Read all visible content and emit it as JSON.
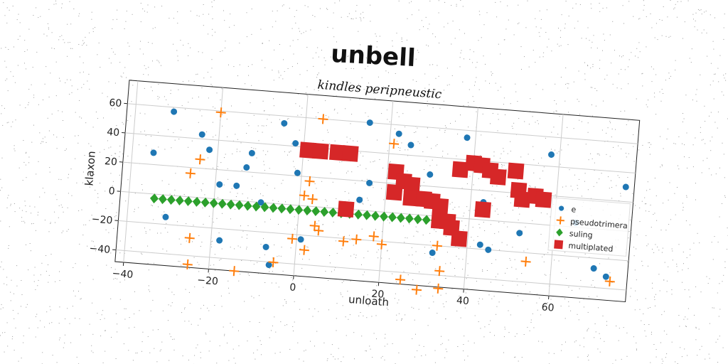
{
  "chart_data": {
    "type": "scatter",
    "suptitle": "unbell",
    "title": "kindles peripneustic",
    "xlabel": "unloath",
    "ylabel": "klaxon",
    "xlim": [
      -42,
      78
    ],
    "ylim": [
      -48,
      76
    ],
    "xticks": [
      -40,
      -20,
      0,
      20,
      40,
      60
    ],
    "yticks": [
      -40,
      -20,
      0,
      20,
      40,
      60
    ],
    "grid": true,
    "legend_position": "center-right",
    "colors": {
      "e": "#1f77b4",
      "pseudotrimera": "#ff7f0e",
      "suling": "#2ca02c",
      "multiplated": "#d62728",
      "grid": "#cccccc"
    },
    "series": [
      {
        "name": "e",
        "marker": "circle",
        "points": [
          [
            -35,
            28
          ],
          [
            -31,
            57
          ],
          [
            -31,
            -15
          ],
          [
            -24,
            43
          ],
          [
            -22,
            33
          ],
          [
            -19,
            10
          ],
          [
            -18,
            -28
          ],
          [
            -15,
            10
          ],
          [
            -13,
            23
          ],
          [
            -12,
            33
          ],
          [
            -9,
            0
          ],
          [
            -7,
            -30
          ],
          [
            -5,
            55
          ],
          [
            -6,
            -42
          ],
          [
            -2,
            42
          ],
          [
            -1,
            22
          ],
          [
            1,
            -23
          ],
          [
            11,
            40
          ],
          [
            14,
            7
          ],
          [
            15,
            60
          ],
          [
            16,
            19
          ],
          [
            22,
            54
          ],
          [
            25,
            47
          ],
          [
            30,
            28
          ],
          [
            32,
            -25
          ],
          [
            38,
            55
          ],
          [
            43,
            12
          ],
          [
            43,
            -17
          ],
          [
            45,
            -20
          ],
          [
            52,
            -7
          ],
          [
            58,
            48
          ],
          [
            70,
            -27
          ],
          [
            73,
            -32
          ],
          [
            76,
            30
          ],
          [
            65,
            3
          ]
        ]
      },
      {
        "name": "pseudotrimera",
        "marker": "plus",
        "points": [
          [
            -20,
            59
          ],
          [
            -26,
            16
          ],
          [
            -24,
            26
          ],
          [
            -25,
            -28
          ],
          [
            -25,
            -46
          ],
          [
            -14,
            -48
          ],
          [
            -5,
            -40
          ],
          [
            -1,
            -23
          ],
          [
            1,
            7
          ],
          [
            2,
            17
          ],
          [
            3,
            5
          ],
          [
            4,
            -13
          ],
          [
            5,
            -16
          ],
          [
            2,
            -30
          ],
          [
            4,
            60
          ],
          [
            11,
            -22
          ],
          [
            14,
            -20
          ],
          [
            18,
            -17
          ],
          [
            20,
            -22
          ],
          [
            21,
            47
          ],
          [
            25,
            -45
          ],
          [
            29,
            -51
          ],
          [
            33,
            -20
          ],
          [
            34,
            -37
          ],
          [
            34,
            -49
          ],
          [
            54,
            -26
          ],
          [
            74,
            -35
          ]
        ]
      },
      {
        "name": "suling",
        "marker": "diamond",
        "points": [
          [
            -34,
            -3
          ],
          [
            -32,
            -3
          ],
          [
            -30,
            -3
          ],
          [
            -28,
            -3
          ],
          [
            -26,
            -3
          ],
          [
            -24,
            -3
          ],
          [
            -22,
            -3
          ],
          [
            -20,
            -3
          ],
          [
            -18,
            -3
          ],
          [
            -16,
            -3
          ],
          [
            -14,
            -3
          ],
          [
            -12,
            -3
          ],
          [
            -10,
            -3
          ],
          [
            -8,
            -3
          ],
          [
            -6,
            -3
          ],
          [
            -4,
            -3
          ],
          [
            -2,
            -3
          ],
          [
            0,
            -3
          ],
          [
            2,
            -3
          ],
          [
            4,
            -3
          ],
          [
            6,
            -3
          ],
          [
            8,
            -3
          ],
          [
            10,
            -3
          ],
          [
            12,
            -3
          ],
          [
            14,
            -3
          ],
          [
            16,
            -3
          ],
          [
            18,
            -3
          ],
          [
            20,
            -3
          ],
          [
            22,
            -3
          ],
          [
            24,
            -3
          ],
          [
            26,
            -3
          ],
          [
            28,
            -3
          ],
          [
            30,
            -3
          ],
          [
            32,
            -3
          ]
        ]
      },
      {
        "name": "multiplated",
        "marker": "square",
        "points": [
          [
            1,
            38
          ],
          [
            4,
            38
          ],
          [
            8,
            38
          ],
          [
            11,
            38
          ],
          [
            11,
            0
          ],
          [
            22,
            28
          ],
          [
            22,
            14
          ],
          [
            24,
            22
          ],
          [
            26,
            20
          ],
          [
            26,
            11
          ],
          [
            29,
            11
          ],
          [
            31,
            10
          ],
          [
            33,
            7
          ],
          [
            33,
            -3
          ],
          [
            35,
            -3
          ],
          [
            36,
            -7
          ],
          [
            38,
            -14
          ],
          [
            37,
            33
          ],
          [
            40,
            38
          ],
          [
            42,
            37
          ],
          [
            44,
            34
          ],
          [
            46,
            30
          ],
          [
            50,
            35
          ],
          [
            51,
            22
          ],
          [
            52,
            16
          ],
          [
            55,
            19
          ],
          [
            57,
            17
          ],
          [
            43,
            7
          ]
        ]
      }
    ]
  }
}
